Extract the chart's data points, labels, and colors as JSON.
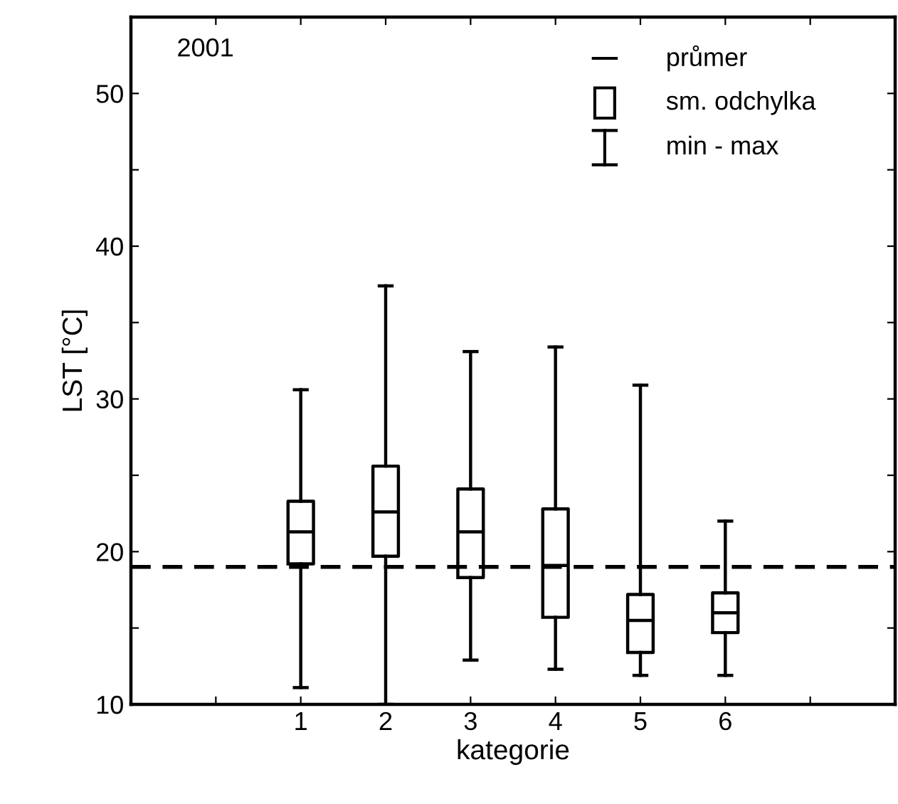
{
  "chart_data": {
    "type": "box",
    "xlabel": "kategorie",
    "ylabel": "LST [°C]",
    "categories": [
      null,
      "1",
      "2",
      "3",
      "4",
      "5",
      "6",
      null
    ],
    "boxes": [
      null,
      {
        "low": 11.1,
        "q1": 19.2,
        "median": 21.3,
        "q3": 23.3,
        "high": 30.6
      },
      {
        "low": 10.0,
        "q1": 19.7,
        "median": 22.6,
        "q3": 25.6,
        "high": 37.4
      },
      {
        "low": 12.9,
        "q1": 18.3,
        "median": 21.3,
        "q3": 24.1,
        "high": 33.1
      },
      {
        "low": 12.3,
        "q1": 15.7,
        "median": 19.1,
        "q3": 22.8,
        "high": 33.4
      },
      {
        "low": 11.9,
        "q1": 13.4,
        "median": 15.5,
        "q3": 17.2,
        "high": 30.9
      },
      {
        "low": 11.9,
        "q1": 14.7,
        "median": 16.0,
        "q3": 17.3,
        "high": 22.0
      },
      null
    ],
    "color": "#000000",
    "ylim": [
      10,
      55
    ],
    "yticks": [
      10,
      {
        "value": 15,
        "label": null
      },
      20,
      {
        "value": 25,
        "label": null
      },
      30,
      {
        "value": 35,
        "label": null
      },
      40,
      {
        "value": 45,
        "label": null
      },
      50,
      {
        "value": 55,
        "label": null
      }
    ],
    "ref_lines": [
      {
        "axis": "y",
        "value": 19.0,
        "label": null,
        "color": "#000000",
        "line_style": "dashed"
      }
    ],
    "annotations": [
      "2001",
      "průmer",
      "sm. odchylka",
      "min - max"
    ],
    "grid": false
  }
}
